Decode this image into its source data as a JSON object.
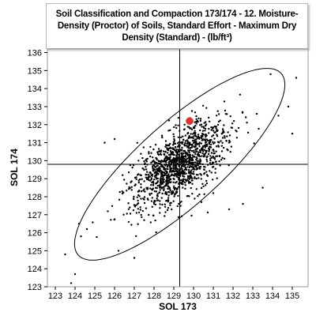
{
  "chart_data": {
    "type": "scatter",
    "title": "Soil Classification and Compaction 173/174 - 12. Moisture-Density (Proctor) of Soils, Standard Effort - Maximum Dry Density (Standard) - (lb/ft³)",
    "xlabel": "SOL 173",
    "ylabel": "SOL 174",
    "xlim": [
      122.6,
      135.8
    ],
    "ylim": [
      123,
      136.2
    ],
    "xticks": [
      123,
      124,
      125,
      126,
      127,
      128,
      129,
      130,
      131,
      132,
      133,
      134,
      135
    ],
    "yticks": [
      123,
      124,
      125,
      126,
      127,
      128,
      129,
      130,
      131,
      132,
      133,
      134,
      135,
      136
    ],
    "grid": false,
    "reference_lines": {
      "x": 129.3,
      "y": 129.8
    },
    "ellipse": {
      "center": [
        129.3,
        129.8
      ],
      "angle_deg": 45,
      "semi_major": 7.2,
      "semi_minor": 2.2
    },
    "highlight_point": {
      "x": 129.8,
      "y": 132.2,
      "color": "#e8302a"
    },
    "cloud": {
      "n": 1300,
      "center": [
        129.3,
        129.8
      ],
      "sd_major": 1.55,
      "sd_minor": 0.72,
      "angle_deg": 45
    },
    "points": [
      [
        123.5,
        124.8
      ],
      [
        124.0,
        123.7
      ],
      [
        123.8,
        123.2
      ],
      [
        124.2,
        126.5
      ],
      [
        124.6,
        126.2
      ],
      [
        124.3,
        125.8
      ],
      [
        133.2,
        132.6
      ],
      [
        133.9,
        134.8
      ],
      [
        134.3,
        132.5
      ],
      [
        135.2,
        134.6
      ],
      [
        135.0,
        131.5
      ],
      [
        134.8,
        133.0
      ],
      [
        133.5,
        128.5
      ],
      [
        131.8,
        127.3
      ],
      [
        125.5,
        131.0
      ],
      [
        126.2,
        125.0
      ],
      [
        127.0,
        124.6
      ],
      [
        131.0,
        128.2
      ],
      [
        132.5,
        127.6
      ],
      [
        126.0,
        131.2
      ]
    ],
    "point_color": "#000000"
  }
}
